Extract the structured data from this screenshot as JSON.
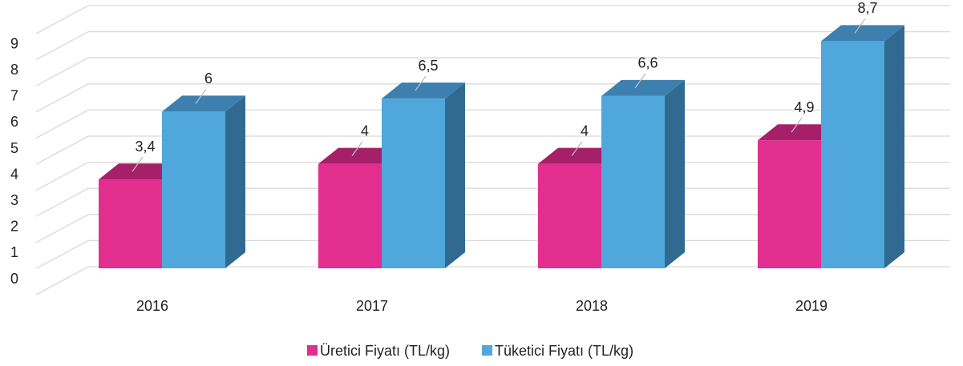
{
  "chart_data": {
    "type": "bar3d",
    "categories": [
      "2016",
      "2017",
      "2018",
      "2019"
    ],
    "series": [
      {
        "name": "Üretici Fiyatı (TL/kg)",
        "color": "#e22e8f",
        "top_color": "#a61f69",
        "side_color": "#8c1a59",
        "values": [
          3.4,
          4,
          4,
          4.9
        ],
        "value_labels": [
          "3,4",
          "4",
          "4",
          "4,9"
        ]
      },
      {
        "name": "Tüketici Fiyatı (TL/kg)",
        "color": "#4fa7dc",
        "top_color": "#3d80b0",
        "side_color": "#316a90",
        "values": [
          6,
          6.5,
          6.6,
          8.7
        ],
        "value_labels": [
          "6",
          "6,5",
          "6,6",
          "8,7"
        ]
      }
    ],
    "ylim": [
      0,
      10
    ],
    "yticks": [
      0,
      1,
      2,
      3,
      4,
      5,
      6,
      7,
      8,
      9
    ],
    "grid": true,
    "legend": "bottom"
  }
}
